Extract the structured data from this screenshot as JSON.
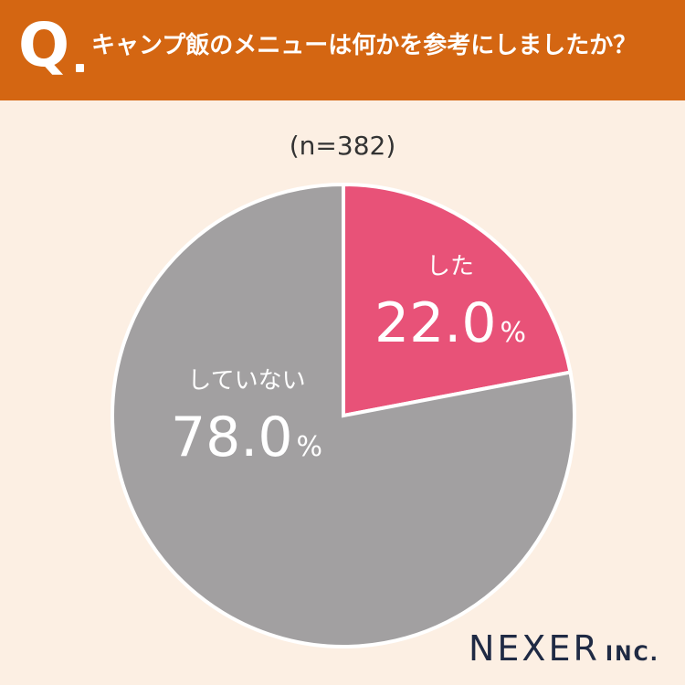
{
  "header": {
    "q_mark": "Q",
    "question": "キャンプ飯のメニューは何かを参考にしましたか？"
  },
  "sample_size": "(n=382)",
  "chart_data": {
    "type": "pie",
    "slices": [
      {
        "label": "した",
        "value": 22.0,
        "value_text": "22.0",
        "unit": "%",
        "color": "#E85278"
      },
      {
        "label": "していない",
        "value": 78.0,
        "value_text": "78.0",
        "unit": "%",
        "color": "#A2A0A1"
      }
    ],
    "start_angle": "12 o'clock",
    "direction": "clockwise"
  },
  "brand": {
    "name": "NEXER",
    "suffix": "INC."
  },
  "colors": {
    "header_bg": "#D46612",
    "page_bg": "#FCEFE3",
    "brand_text": "#1F2A44"
  }
}
